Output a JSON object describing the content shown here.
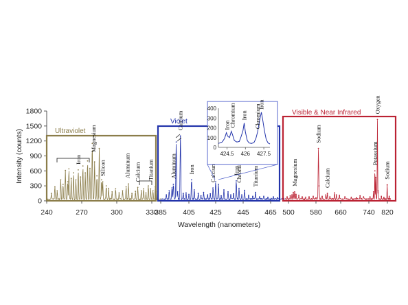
{
  "chart_data": {
    "type": "line",
    "ylabel": "Intensity (counts)",
    "xlabel": "Wavelength  (nanometers)",
    "ylim": [
      0,
      1800
    ],
    "yticks": [
      "0",
      "300",
      "600",
      "900",
      "1200",
      "1500",
      "1800"
    ],
    "grid": false,
    "panels": [
      {
        "name": "Ultraviolet",
        "color": "#8b7d4a",
        "xlim": [
          240,
          338
        ],
        "xticks": [
          "240",
          "270",
          "300",
          "330"
        ],
        "peaks": [
          {
            "x": 244,
            "y": 150
          },
          {
            "x": 247,
            "y": 280
          },
          {
            "x": 249,
            "y": 200
          },
          {
            "x": 252,
            "y": 420
          },
          {
            "x": 254,
            "y": 330
          },
          {
            "x": 256,
            "y": 610
          },
          {
            "x": 258,
            "y": 380
          },
          {
            "x": 259,
            "y": 640
          },
          {
            "x": 261,
            "y": 450
          },
          {
            "x": 263,
            "y": 560
          },
          {
            "x": 265,
            "y": 420
          },
          {
            "x": 267,
            "y": 620
          },
          {
            "x": 269,
            "y": 480
          },
          {
            "x": 271,
            "y": 700
          },
          {
            "x": 273,
            "y": 560
          },
          {
            "x": 275,
            "y": 800
          },
          {
            "x": 277,
            "y": 650
          },
          {
            "x": 279,
            "y": 1150
          },
          {
            "x": 281,
            "y": 780
          },
          {
            "x": 283,
            "y": 500
          },
          {
            "x": 285,
            "y": 1050
          },
          {
            "x": 287,
            "y": 420
          },
          {
            "x": 288,
            "y": 380
          },
          {
            "x": 291,
            "y": 300
          },
          {
            "x": 293,
            "y": 250
          },
          {
            "x": 296,
            "y": 180
          },
          {
            "x": 299,
            "y": 240
          },
          {
            "x": 302,
            "y": 160
          },
          {
            "x": 305,
            "y": 200
          },
          {
            "x": 308,
            "y": 280
          },
          {
            "x": 310,
            "y": 340
          },
          {
            "x": 313,
            "y": 150
          },
          {
            "x": 316,
            "y": 190
          },
          {
            "x": 318,
            "y": 270
          },
          {
            "x": 321,
            "y": 200
          },
          {
            "x": 323,
            "y": 240
          },
          {
            "x": 325,
            "y": 160
          },
          {
            "x": 327,
            "y": 300
          },
          {
            "x": 329,
            "y": 240
          },
          {
            "x": 331,
            "y": 200
          },
          {
            "x": 333,
            "y": 280
          },
          {
            "x": 335,
            "y": 180
          }
        ],
        "labels": [
          {
            "text": "Iron",
            "x": 267,
            "y": 620
          },
          {
            "text": "Magnesium",
            "x": 280,
            "y": 860
          },
          {
            "text": "Silicon",
            "x": 288,
            "y": 380
          },
          {
            "text": "Aluminum",
            "x": 309,
            "y": 340
          },
          {
            "text": "Calcium",
            "x": 318,
            "y": 270
          },
          {
            "text": "Titanium",
            "x": 329,
            "y": 300
          }
        ]
      },
      {
        "name": "Violet",
        "color": "#2233aa",
        "xlim": [
          385,
          475
        ],
        "xticks": [
          "385",
          "405",
          "425",
          "445",
          "465"
        ],
        "peaks": [
          {
            "x": 389,
            "y": 120
          },
          {
            "x": 391,
            "y": 200
          },
          {
            "x": 393,
            "y": 260
          },
          {
            "x": 394,
            "y": 330
          },
          {
            "x": 396,
            "y": 1180
          },
          {
            "x": 397,
            "y": 180
          },
          {
            "x": 399,
            "y": 1300
          },
          {
            "x": 401,
            "y": 150
          },
          {
            "x": 403,
            "y": 160
          },
          {
            "x": 405,
            "y": 130
          },
          {
            "x": 407,
            "y": 420
          },
          {
            "x": 409,
            "y": 220
          },
          {
            "x": 412,
            "y": 150
          },
          {
            "x": 414,
            "y": 100
          },
          {
            "x": 416,
            "y": 170
          },
          {
            "x": 419,
            "y": 120
          },
          {
            "x": 421,
            "y": 140
          },
          {
            "x": 423,
            "y": 260
          },
          {
            "x": 425,
            "y": 380
          },
          {
            "x": 427,
            "y": 330
          },
          {
            "x": 429,
            "y": 100
          },
          {
            "x": 431,
            "y": 220
          },
          {
            "x": 434,
            "y": 180
          },
          {
            "x": 436,
            "y": 120
          },
          {
            "x": 438,
            "y": 140
          },
          {
            "x": 440,
            "y": 400
          },
          {
            "x": 442,
            "y": 250
          },
          {
            "x": 444,
            "y": 120
          },
          {
            "x": 446,
            "y": 210
          },
          {
            "x": 449,
            "y": 110
          },
          {
            "x": 452,
            "y": 90
          },
          {
            "x": 454,
            "y": 170
          },
          {
            "x": 457,
            "y": 80
          },
          {
            "x": 460,
            "y": 90
          },
          {
            "x": 463,
            "y": 70
          },
          {
            "x": 467,
            "y": 80
          },
          {
            "x": 470,
            "y": 60
          }
        ],
        "labels": [
          {
            "text": "Aluminum",
            "x": 394,
            "y": 330
          },
          {
            "text": "Calcium",
            "x": 399,
            "y": 1300
          },
          {
            "text": "Iron",
            "x": 407,
            "y": 420
          },
          {
            "text": "Calcium",
            "x": 423,
            "y": 260
          },
          {
            "text": "Iron",
            "x": 440,
            "y": 400
          },
          {
            "text": "Chromium",
            "x": 442,
            "y": 250
          },
          {
            "text": "Titanium",
            "x": 454,
            "y": 170
          }
        ]
      },
      {
        "name": "Visible  & Near Infrared",
        "color": "#bb2233",
        "xlim": [
          490,
          835
        ],
        "xticks": [
          "500",
          "580",
          "660",
          "740",
          "820"
        ],
        "peaks": [
          {
            "x": 496,
            "y": 80
          },
          {
            "x": 505,
            "y": 100
          },
          {
            "x": 510,
            "y": 120
          },
          {
            "x": 514,
            "y": 170
          },
          {
            "x": 518,
            "y": 180
          },
          {
            "x": 522,
            "y": 130
          },
          {
            "x": 530,
            "y": 110
          },
          {
            "x": 540,
            "y": 80
          },
          {
            "x": 550,
            "y": 70
          },
          {
            "x": 560,
            "y": 80
          },
          {
            "x": 572,
            "y": 90
          },
          {
            "x": 580,
            "y": 60
          },
          {
            "x": 588,
            "y": 1050
          },
          {
            "x": 590,
            "y": 300
          },
          {
            "x": 600,
            "y": 90
          },
          {
            "x": 612,
            "y": 120
          },
          {
            "x": 617,
            "y": 150
          },
          {
            "x": 625,
            "y": 80
          },
          {
            "x": 640,
            "y": 160
          },
          {
            "x": 646,
            "y": 120
          },
          {
            "x": 656,
            "y": 110
          },
          {
            "x": 672,
            "y": 80
          },
          {
            "x": 690,
            "y": 70
          },
          {
            "x": 705,
            "y": 60
          },
          {
            "x": 715,
            "y": 100
          },
          {
            "x": 725,
            "y": 80
          },
          {
            "x": 745,
            "y": 80
          },
          {
            "x": 760,
            "y": 180
          },
          {
            "x": 766,
            "y": 600
          },
          {
            "x": 770,
            "y": 470
          },
          {
            "x": 777,
            "y": 1630
          },
          {
            "x": 780,
            "y": 200
          },
          {
            "x": 794,
            "y": 90
          },
          {
            "x": 805,
            "y": 70
          },
          {
            "x": 819,
            "y": 320
          },
          {
            "x": 828,
            "y": 90
          }
        ],
        "labels": [
          {
            "text": "Magnesium",
            "x": 518,
            "y": 180
          },
          {
            "text": "Sodium",
            "x": 588,
            "y": 1050
          },
          {
            "text": "Calcium",
            "x": 617,
            "y": 150
          },
          {
            "text": "Potassium",
            "x": 766,
            "y": 600
          },
          {
            "text": "Oxygen",
            "x": 777,
            "y": 1630
          },
          {
            "text": "Sodium",
            "x": 819,
            "y": 320
          }
        ]
      }
    ],
    "inset": {
      "color": "#2233aa",
      "xlim": [
        423.8,
        428.0
      ],
      "ylim": [
        0,
        400
      ],
      "xticks": [
        "424.5",
        "426",
        "427.5"
      ],
      "yticks": [
        "0",
        "100",
        "200",
        "300",
        "400"
      ],
      "points": [
        [
          423.8,
          40
        ],
        [
          424.1,
          55
        ],
        [
          424.3,
          90
        ],
        [
          424.45,
          150
        ],
        [
          424.55,
          115
        ],
        [
          424.7,
          100
        ],
        [
          424.85,
          165
        ],
        [
          424.95,
          130
        ],
        [
          425.1,
          70
        ],
        [
          425.3,
          55
        ],
        [
          425.5,
          60
        ],
        [
          425.65,
          110
        ],
        [
          425.8,
          170
        ],
        [
          425.9,
          250
        ],
        [
          426.0,
          155
        ],
        [
          426.15,
          70
        ],
        [
          426.3,
          45
        ],
        [
          426.5,
          40
        ],
        [
          426.7,
          50
        ],
        [
          426.85,
          90
        ],
        [
          427.0,
          160
        ],
        [
          427.15,
          270
        ],
        [
          427.3,
          360
        ],
        [
          427.4,
          290
        ],
        [
          427.55,
          170
        ],
        [
          427.7,
          80
        ],
        [
          427.85,
          45
        ],
        [
          428.0,
          35
        ]
      ],
      "labels": [
        {
          "text": "Iron",
          "x": 424.5,
          "y": 150
        },
        {
          "text": "Chromium",
          "x": 424.95,
          "y": 170
        },
        {
          "text": "Iron",
          "x": 425.9,
          "y": 250
        },
        {
          "text": "Chromium",
          "x": 427.0,
          "y": 160
        },
        {
          "text": "Iron",
          "x": 427.3,
          "y": 360
        }
      ]
    }
  }
}
